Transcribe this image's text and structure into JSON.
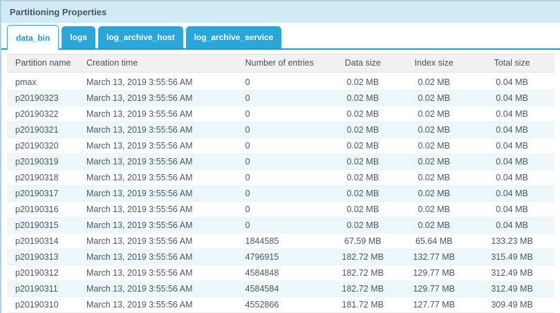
{
  "panel": {
    "title": "Partitioning Properties"
  },
  "tabs": [
    {
      "label": "data_bin",
      "active": true
    },
    {
      "label": "logs",
      "active": false
    },
    {
      "label": "log_archive_host",
      "active": false
    },
    {
      "label": "log_archive_service",
      "active": false
    }
  ],
  "table": {
    "columns": [
      "Partition name",
      "Creation time",
      "Number of entries",
      "Data size",
      "Index size",
      "Total size"
    ],
    "rows": [
      [
        "pmax",
        "March 13, 2019 3:55:56 AM",
        "0",
        "0.02 MB",
        "0.02 MB",
        "0.04 MB"
      ],
      [
        "p20190323",
        "March 13, 2019 3:55:56 AM",
        "0",
        "0.02 MB",
        "0.02 MB",
        "0.04 MB"
      ],
      [
        "p20190322",
        "March 13, 2019 3:55:56 AM",
        "0",
        "0.02 MB",
        "0.02 MB",
        "0.04 MB"
      ],
      [
        "p20190321",
        "March 13, 2019 3:55:56 AM",
        "0",
        "0.02 MB",
        "0.02 MB",
        "0.04 MB"
      ],
      [
        "p20190320",
        "March 13, 2019 3:55:56 AM",
        "0",
        "0.02 MB",
        "0.02 MB",
        "0.04 MB"
      ],
      [
        "p20190319",
        "March 13, 2019 3:55:56 AM",
        "0",
        "0.02 MB",
        "0.02 MB",
        "0.04 MB"
      ],
      [
        "p20190318",
        "March 13, 2019 3:55:56 AM",
        "0",
        "0.02 MB",
        "0.02 MB",
        "0.04 MB"
      ],
      [
        "p20190317",
        "March 13, 2019 3:55:56 AM",
        "0",
        "0.02 MB",
        "0.02 MB",
        "0.04 MB"
      ],
      [
        "p20190316",
        "March 13, 2019 3:55:56 AM",
        "0",
        "0.02 MB",
        "0.02 MB",
        "0.04 MB"
      ],
      [
        "p20190315",
        "March 13, 2019 3:55:56 AM",
        "0",
        "0.02 MB",
        "0.02 MB",
        "0.04 MB"
      ],
      [
        "p20190314",
        "March 13, 2019 3:55:56 AM",
        "1844585",
        "67.59 MB",
        "65.64 MB",
        "133.23 MB"
      ],
      [
        "p20190313",
        "March 13, 2019 3:55:56 AM",
        "4796915",
        "182.72 MB",
        "132.77 MB",
        "315.49 MB"
      ],
      [
        "p20190312",
        "March 13, 2019 3:55:56 AM",
        "4584848",
        "182.72 MB",
        "129.77 MB",
        "312.49 MB"
      ],
      [
        "p20190311",
        "March 13, 2019 3:55:56 AM",
        "4584584",
        "182.72 MB",
        "129.77 MB",
        "312.49 MB"
      ],
      [
        "p20190310",
        "March 13, 2019 3:55:56 AM",
        "4552866",
        "181.72 MB",
        "127.77 MB",
        "309.49 MB"
      ]
    ]
  },
  "colors": {
    "tab_blue": "#29a7db",
    "tab_underline": "#159bd5",
    "active_tab_text": "#1b9ad1",
    "title_bar_bg": "#d0eaf6",
    "header_bg": "#f1f1f1",
    "alt_row_bg": "#eef7fc",
    "panel_border": "#b0d0e4",
    "text": "#4c565f"
  }
}
